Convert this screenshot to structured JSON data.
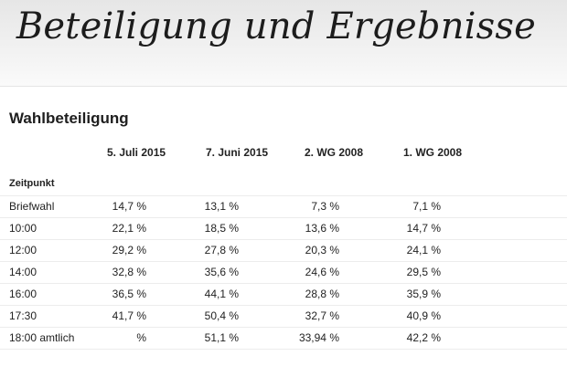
{
  "banner": {
    "title": "Beteiligung und Ergebnisse"
  },
  "section": {
    "heading": "Wahlbeteiligung"
  },
  "table": {
    "columns": [
      "5. Juli 2015",
      "7. Juni 2015",
      "2. WG 2008",
      "1. WG 2008"
    ],
    "row_header": "Zeitpunkt",
    "rows": [
      {
        "label": "Briefwahl",
        "values": [
          "14,7 %",
          "13,1 %",
          "7,3 %",
          "7,1 %"
        ]
      },
      {
        "label": "10:00",
        "values": [
          "22,1 %",
          "18,5 %",
          "13,6 %",
          "14,7 %"
        ]
      },
      {
        "label": "12:00",
        "values": [
          "29,2 %",
          "27,8 %",
          "20,3 %",
          "24,1 %"
        ]
      },
      {
        "label": "14:00",
        "values": [
          "32,8 %",
          "35,6 %",
          "24,6 %",
          "29,5 %"
        ]
      },
      {
        "label": "16:00",
        "values": [
          "36,5 %",
          "44,1 %",
          "28,8 %",
          "35,9 %"
        ]
      },
      {
        "label": "17:30",
        "values": [
          "41,7 %",
          "50,4 %",
          "32,7 %",
          "40,9 %"
        ]
      },
      {
        "label": "18:00 amtlich",
        "values": [
          "%",
          "51,1 %",
          "33,94 %",
          "42,2 %"
        ]
      }
    ]
  }
}
